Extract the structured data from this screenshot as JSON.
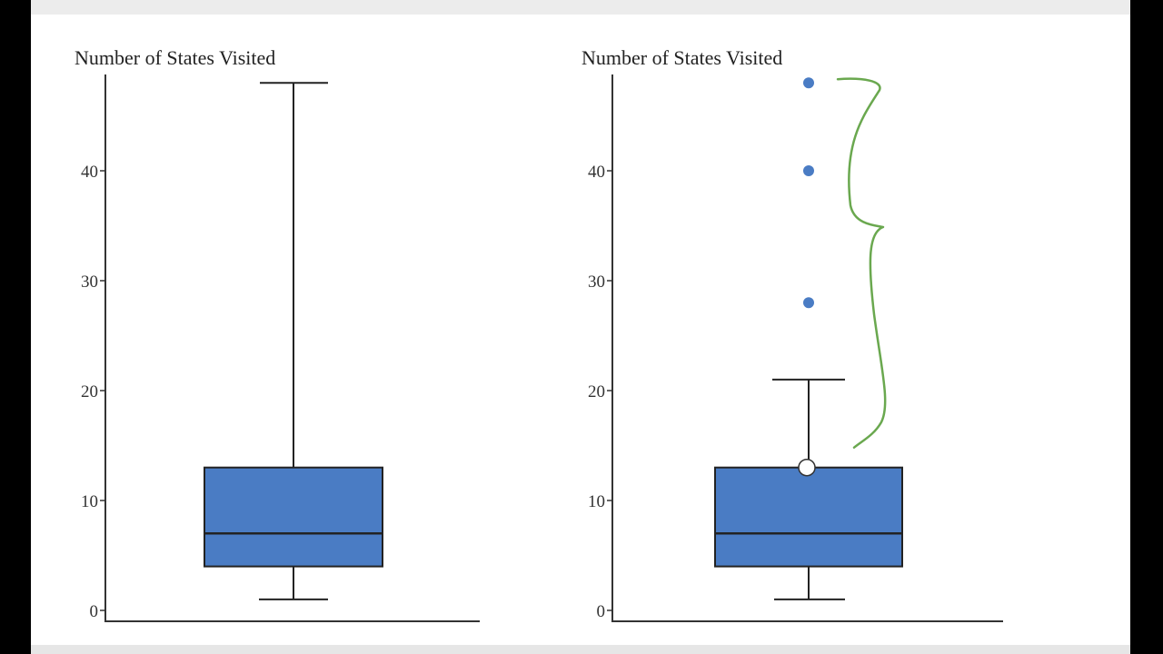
{
  "chart_data": [
    {
      "type": "box",
      "title": "Number of States Visited",
      "yticks": [
        0,
        10,
        20,
        30,
        40
      ],
      "ylim": [
        0,
        48
      ],
      "box": {
        "whisker_low": 1,
        "q1": 4,
        "median": 7,
        "q3": 13,
        "whisker_high": 48
      },
      "outliers": []
    },
    {
      "type": "box",
      "title": "Number of States Visited",
      "yticks": [
        0,
        10,
        20,
        30,
        40
      ],
      "ylim": [
        0,
        48
      ],
      "box": {
        "whisker_low": 1,
        "q1": 4,
        "median": 7,
        "q3": 13,
        "whisker_high": 21
      },
      "outliers": [
        28,
        40,
        48
      ]
    }
  ],
  "colors": {
    "box_fill": "#4a7cc4",
    "outlier": "#4a7cc4",
    "annotation": "#6aa84f"
  },
  "annotation": {
    "icon": "curly-brace-icon",
    "spans_values": [
      13,
      48
    ]
  }
}
